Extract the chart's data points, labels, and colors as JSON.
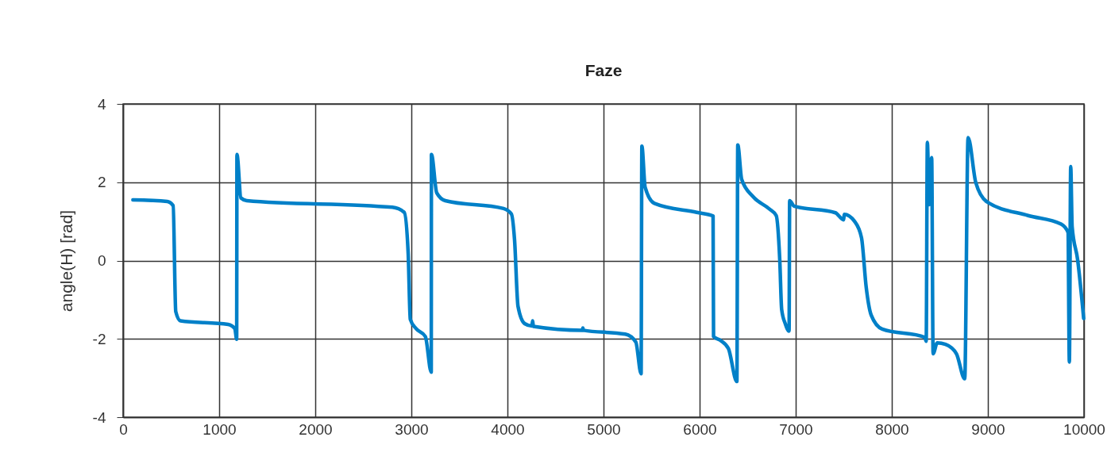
{
  "chart_data": {
    "type": "line",
    "title": "Faze",
    "ylabel": "angle(H) [rad]",
    "xlim": [
      0,
      10000
    ],
    "xticks": [
      0,
      1000,
      2000,
      3000,
      4000,
      5000,
      6000,
      7000,
      8000,
      9000,
      10000
    ],
    "ylim": [
      -4,
      4
    ],
    "yticks": [
      -4,
      -2,
      0,
      2,
      4
    ],
    "grid": true,
    "marker": "none",
    "line_style": "solid",
    "series": [
      {
        "color": "#0080c8",
        "x": [
          102,
          460,
          521,
          548,
          598,
          1093,
          1163,
          1182,
          1185,
          1226,
          1287,
          2802,
          2926,
          2967,
          2989,
          3050,
          3146,
          3207,
          3209,
          3264,
          3353,
          3959,
          4041,
          4074,
          4110,
          4179,
          4255,
          4262,
          4270,
          4780,
          4785,
          4790,
          5226,
          5336,
          5391,
          5399,
          5433,
          5529,
          5970,
          6140,
          6145,
          6218,
          6300,
          6388,
          6397,
          6438,
          6553,
          6725,
          6797,
          6834,
          6854,
          6891,
          6931,
          6937,
          6983,
          7413,
          7499,
          7505,
          7613,
          7685,
          7734,
          7785,
          7900,
          8344,
          8358,
          8370,
          8390,
          8415,
          8430,
          8473,
          8559,
          8673,
          8759,
          8794,
          8874,
          8989,
          9418,
          9762,
          9834,
          9848,
          9862,
          9877,
          9934,
          9997
        ],
        "values": [
          1.55,
          1.51,
          1.4,
          -1.3,
          -1.54,
          -1.63,
          -1.74,
          -2.01,
          2.71,
          1.6,
          1.53,
          1.36,
          1.23,
          0.18,
          -1.5,
          -1.74,
          -1.94,
          -2.85,
          2.71,
          1.73,
          1.53,
          1.33,
          1.19,
          0.53,
          -1.17,
          -1.61,
          -1.67,
          -1.54,
          -1.68,
          -1.78,
          -1.72,
          -1.78,
          -1.88,
          -2.08,
          -2.89,
          2.92,
          1.87,
          1.46,
          1.23,
          1.14,
          -1.94,
          -2.04,
          -2.25,
          -3.09,
          2.95,
          2.07,
          1.64,
          1.32,
          1.15,
          0.02,
          -1.25,
          -1.61,
          -1.8,
          1.53,
          1.39,
          1.22,
          1.04,
          1.18,
          1.0,
          0.58,
          -0.69,
          -1.39,
          -1.75,
          -1.96,
          -2.06,
          3.02,
          1.43,
          2.63,
          -2.38,
          -2.1,
          -2.14,
          -2.38,
          -3.02,
          3.14,
          1.99,
          1.5,
          1.15,
          0.93,
          0.72,
          -2.59,
          2.4,
          0.86,
          0.02,
          -1.48
        ]
      }
    ]
  }
}
